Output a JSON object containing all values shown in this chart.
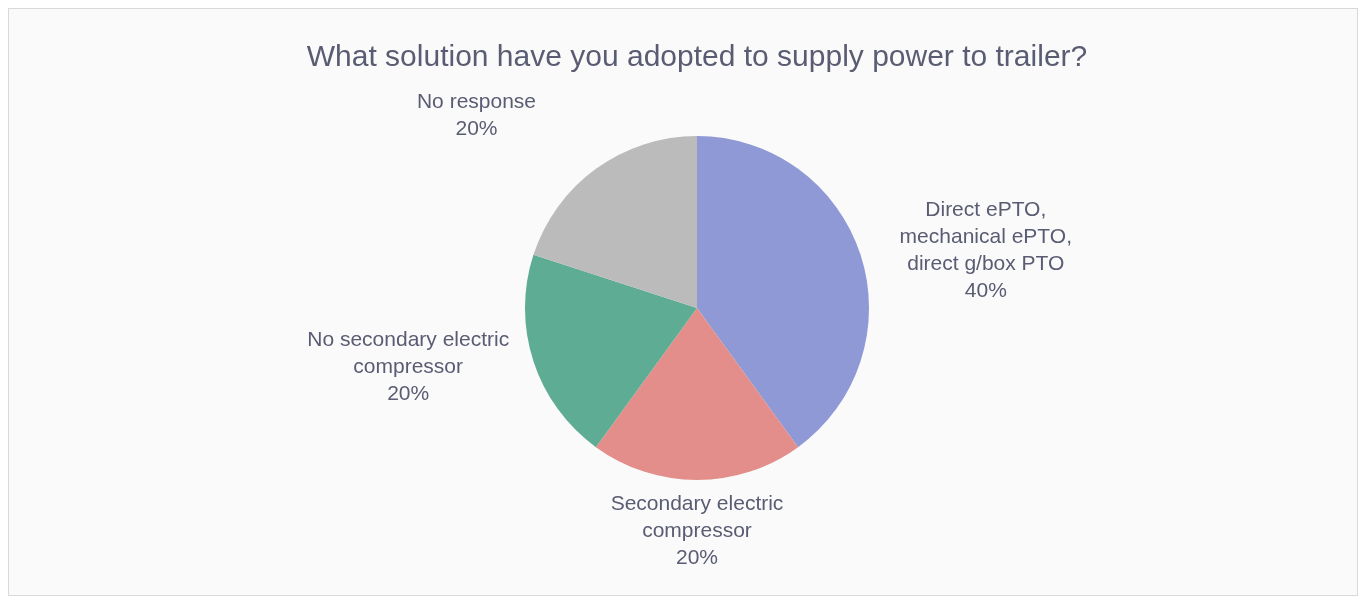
{
  "chart_data": {
    "type": "pie",
    "title": "What solution have you adopted to supply power to trailer?",
    "categories": [
      "Direct ePTO, mechanical ePTO, direct g/box PTO",
      "Secondary electric compressor",
      "No secondary electric compressor",
      "No response"
    ],
    "values": [
      40,
      20,
      20,
      20
    ],
    "colors": [
      "#8f99d6",
      "#e38e8a",
      "#5eac94",
      "#bbbbbb"
    ],
    "value_labels": [
      "40%",
      "20%",
      "20%",
      "20%"
    ]
  }
}
